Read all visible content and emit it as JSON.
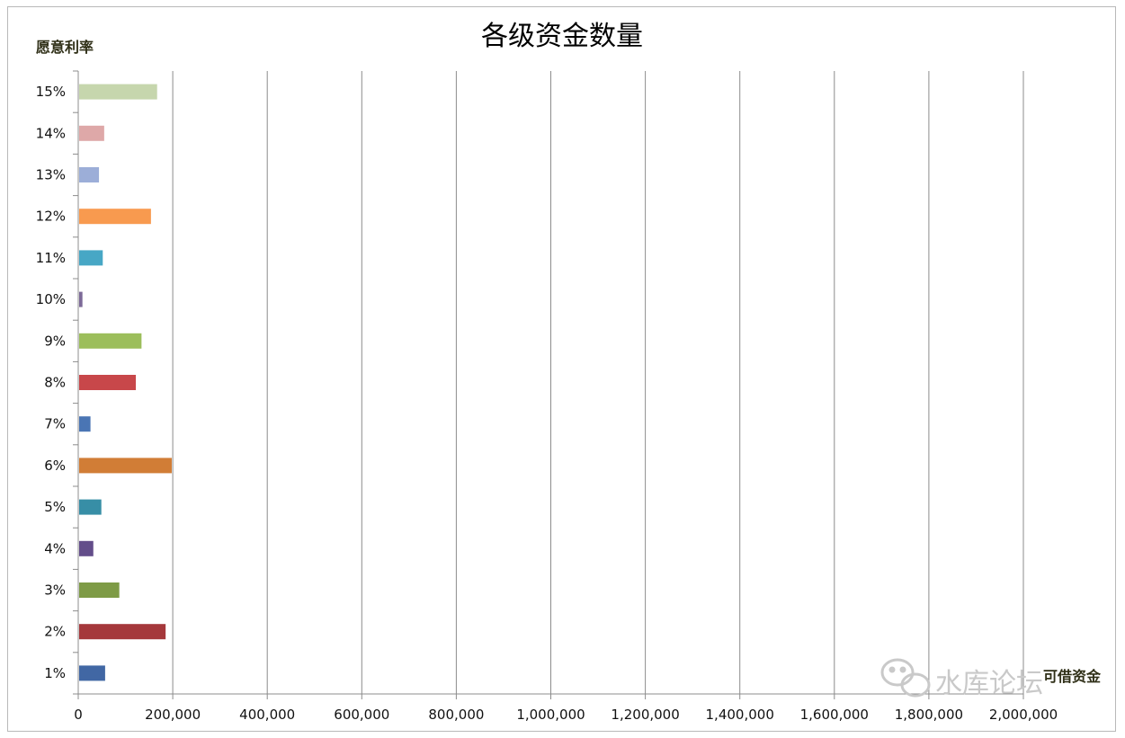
{
  "chart_data": {
    "type": "bar",
    "orientation": "horizontal",
    "title": "各级资金数量",
    "ylabel": "愿意利率",
    "xlabel": "可借资金",
    "categories": [
      "1%",
      "2%",
      "3%",
      "4%",
      "5%",
      "6%",
      "7%",
      "8%",
      "9%",
      "10%",
      "11%",
      "12%",
      "13%",
      "14%",
      "15%"
    ],
    "values": [
      55000,
      183000,
      85000,
      30000,
      47000,
      196000,
      24000,
      120000,
      132000,
      7000,
      50000,
      152000,
      42000,
      53000,
      165000
    ],
    "bar_colors": [
      "#4167a4",
      "#a5383b",
      "#7e9b46",
      "#634d8a",
      "#378ea6",
      "#d17d36",
      "#4a75b4",
      "#c8474a",
      "#9cbe5b",
      "#7d6a98",
      "#47a7c5",
      "#f89a4f",
      "#9caed8",
      "#dea8a8",
      "#c6d6ad"
    ],
    "xlim": [
      0,
      2000000
    ],
    "x_ticks": [
      "0",
      "200,000",
      "400,000",
      "600,000",
      "800,000",
      "1,000,000",
      "1,200,000",
      "1,400,000",
      "1,600,000",
      "1,800,000",
      "2,000,000"
    ],
    "grid": true,
    "legend": "none"
  },
  "watermark": {
    "text": "水库论坛",
    "icon": "wechat-icon"
  },
  "colors": {
    "gridline": "#8c8c8c",
    "axis": "#8c8c8c",
    "frame": "#b9b9b9"
  }
}
